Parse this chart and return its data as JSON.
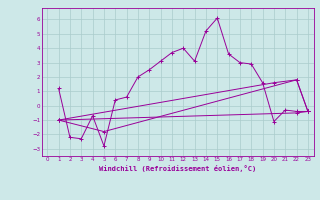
{
  "xlabel": "Windchill (Refroidissement éolien,°C)",
  "xlim": [
    -0.5,
    23.5
  ],
  "ylim": [
    -3.5,
    6.8
  ],
  "xticks": [
    0,
    1,
    2,
    3,
    4,
    5,
    6,
    7,
    8,
    9,
    10,
    11,
    12,
    13,
    14,
    15,
    16,
    17,
    18,
    19,
    20,
    21,
    22,
    23
  ],
  "yticks": [
    -3,
    -2,
    -1,
    0,
    1,
    2,
    3,
    4,
    5,
    6
  ],
  "bg_color": "#cde8e8",
  "line_color": "#990099",
  "grid_color": "#aacccc",
  "line1_x": [
    1,
    2,
    3,
    4,
    5,
    6,
    7,
    8,
    9,
    10,
    11,
    12,
    13,
    14,
    15,
    16,
    17,
    18,
    19,
    20,
    21,
    22,
    23
  ],
  "line1_y": [
    1.2,
    -2.2,
    -2.3,
    -0.7,
    -2.8,
    0.4,
    0.6,
    2.0,
    2.5,
    3.1,
    3.7,
    4.0,
    3.1,
    5.2,
    6.1,
    3.6,
    3.0,
    2.9,
    1.6,
    -1.1,
    -0.3,
    -0.4,
    -0.4
  ],
  "line2_x": [
    1,
    5,
    22,
    23
  ],
  "line2_y": [
    -1.0,
    -1.8,
    1.8,
    -0.4
  ],
  "line3_x": [
    1,
    22,
    23
  ],
  "line3_y": [
    -1.0,
    -0.5,
    -0.4
  ],
  "line4_x": [
    1,
    20,
    22,
    23
  ],
  "line4_y": [
    -1.0,
    1.6,
    1.8,
    -0.4
  ]
}
